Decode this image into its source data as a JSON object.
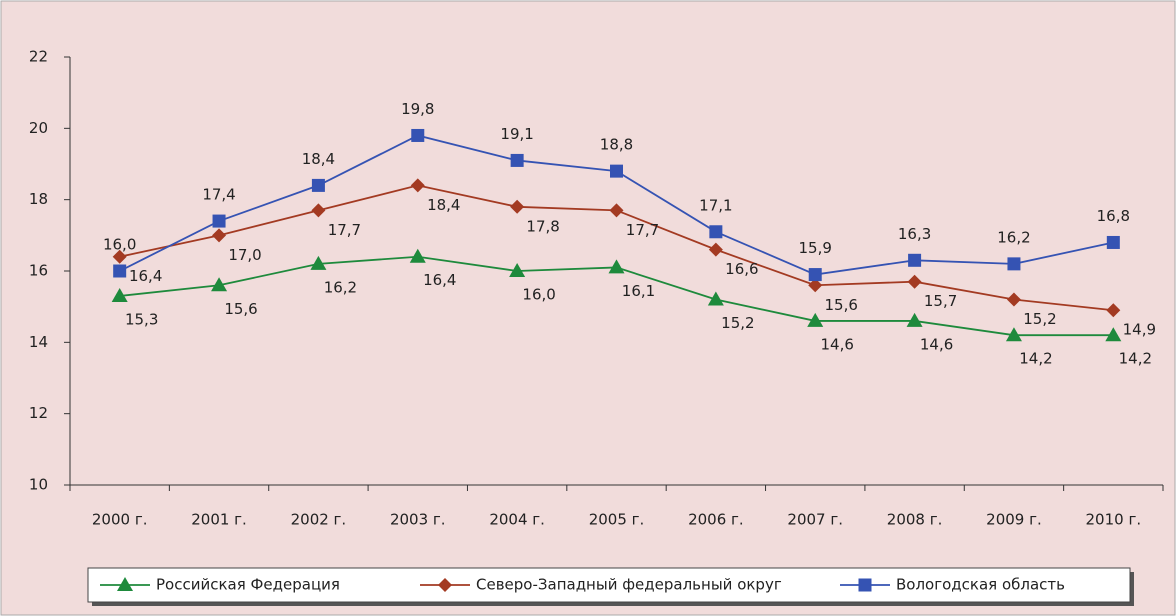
{
  "chart_data": {
    "type": "line",
    "categories": [
      "2000 г.",
      "2001 г.",
      "2002 г.",
      "2003 г.",
      "2004 г.",
      "2005 г.",
      "2006 г.",
      "2007 г.",
      "2008 г.",
      "2009 г.",
      "2010 г."
    ],
    "ylim": [
      10,
      22
    ],
    "yticks": [
      10,
      12,
      14,
      16,
      18,
      20,
      22
    ],
    "series": [
      {
        "name": "Российская Федерация",
        "color": "#1e8a3c",
        "marker": "triangle",
        "values": [
          15.3,
          15.6,
          16.2,
          16.4,
          16.0,
          16.1,
          15.2,
          14.6,
          14.6,
          14.2,
          14.2
        ],
        "value_labels": [
          "15,3",
          "15,6",
          "16,2",
          "16,4",
          "16,0",
          "16,1",
          "15,2",
          "14,6",
          "14,6",
          "14,2",
          "14,2"
        ]
      },
      {
        "name": "Северо-Западный федеральный округ",
        "color": "#a33a22",
        "marker": "diamond",
        "values": [
          16.4,
          17.0,
          17.7,
          18.4,
          17.8,
          17.7,
          16.6,
          15.6,
          15.7,
          15.2,
          14.9
        ],
        "value_labels": [
          "16,4",
          "17,0",
          "17,7",
          "18,4",
          "17,8",
          "17,7",
          "16,6",
          "15,6",
          "15,7",
          "15,2",
          "14,9"
        ]
      },
      {
        "name": "Вологодская область",
        "color": "#3553b3",
        "marker": "square",
        "values": [
          16.0,
          17.4,
          18.4,
          19.8,
          19.1,
          18.8,
          17.1,
          15.9,
          16.3,
          16.2,
          16.8
        ],
        "value_labels": [
          "16,0",
          "17,4",
          "18,4",
          "19,8",
          "19,1",
          "18,8",
          "17,1",
          "15,9",
          "16,3",
          "16,2",
          "16,8"
        ]
      }
    ]
  }
}
